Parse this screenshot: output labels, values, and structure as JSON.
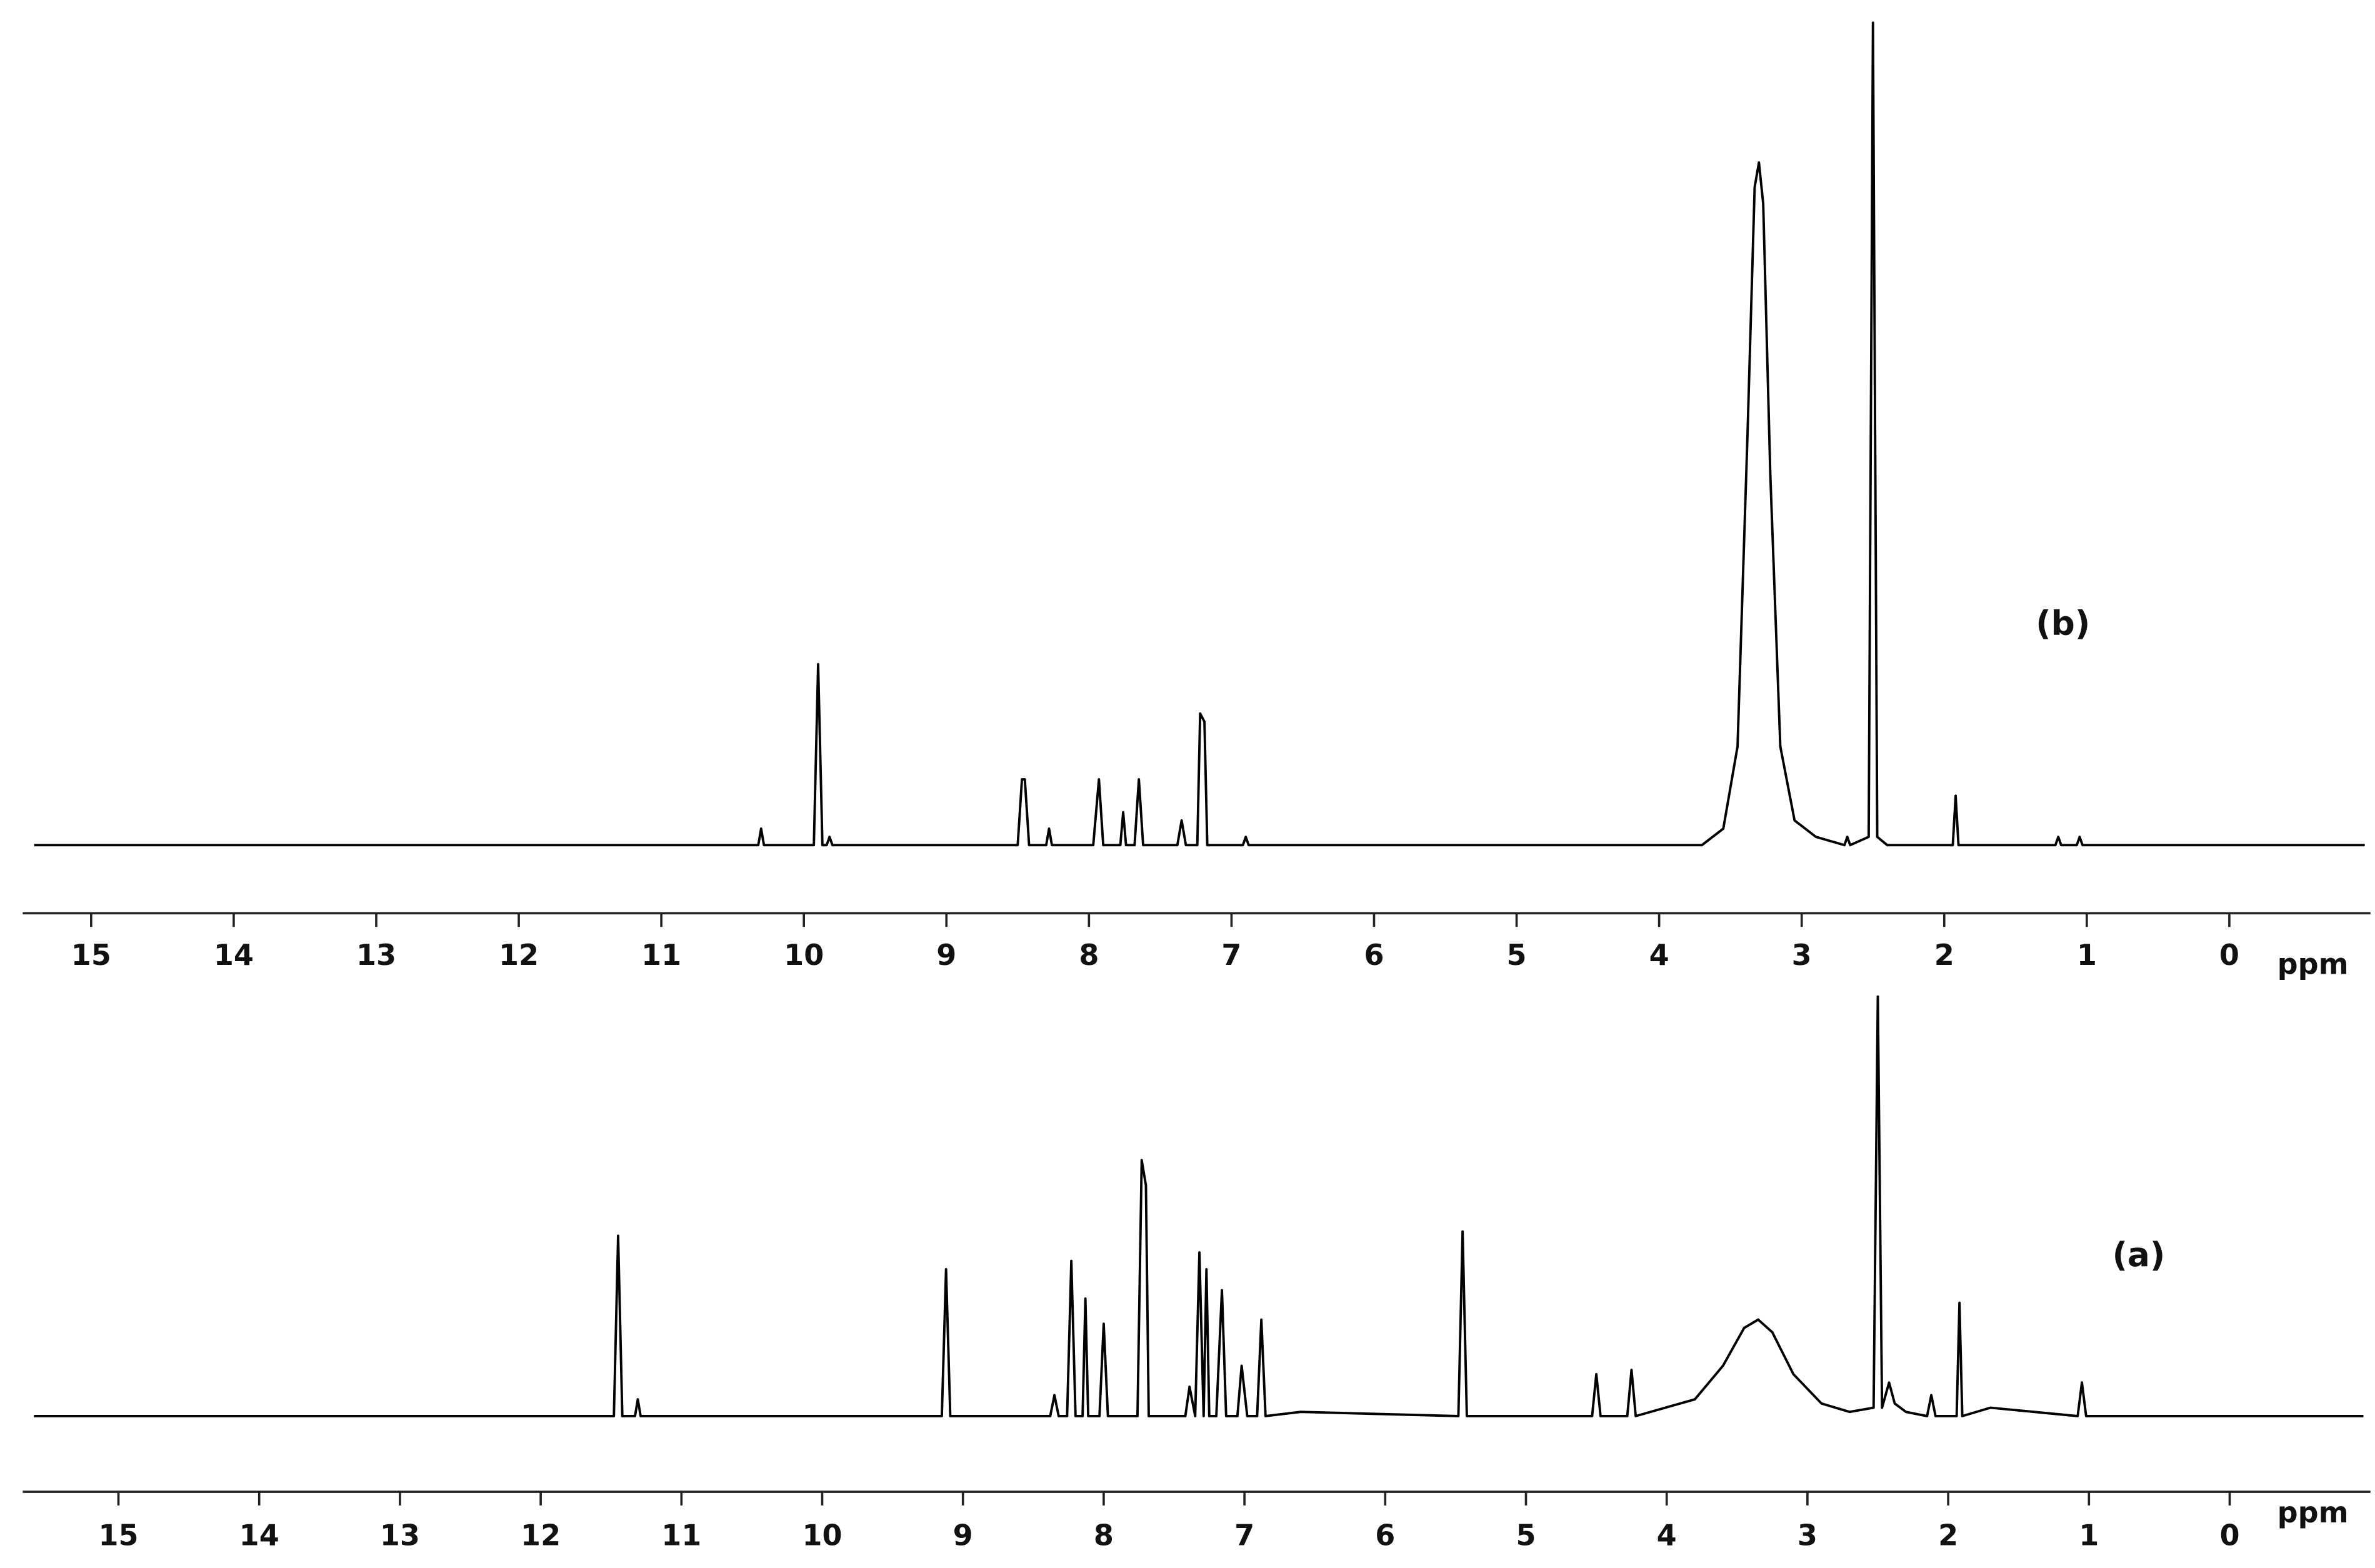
{
  "chart_data": [
    {
      "type": "line",
      "annotation": "(b)",
      "xlabel": "ppm",
      "color": "#000000",
      "xlim": [
        15.48,
        -0.99
      ],
      "ylim": [
        0,
        100
      ],
      "xticks": [
        15,
        14,
        13,
        12,
        11,
        10,
        9,
        8,
        7,
        6,
        5,
        4,
        3,
        2,
        1,
        0
      ],
      "x": [
        15.4,
        10.32,
        10.3,
        10.28,
        9.93,
        9.9,
        9.87,
        9.84,
        9.82,
        9.8,
        8.5,
        8.47,
        8.45,
        8.42,
        8.3,
        8.28,
        8.26,
        7.97,
        7.93,
        7.9,
        7.78,
        7.76,
        7.74,
        7.68,
        7.65,
        7.62,
        7.38,
        7.35,
        7.32,
        7.24,
        7.22,
        7.19,
        7.17,
        6.92,
        6.9,
        6.88,
        3.7,
        3.55,
        3.45,
        3.38,
        3.33,
        3.3,
        3.27,
        3.22,
        3.15,
        3.05,
        2.9,
        2.7,
        2.68,
        2.66,
        2.53,
        2.5,
        2.47,
        2.4,
        1.94,
        1.92,
        1.9,
        1.22,
        1.2,
        1.18,
        1.07,
        1.05,
        1.03,
        -0.95
      ],
      "values": [
        0,
        0,
        2,
        0,
        0,
        22,
        0,
        0,
        1,
        0,
        0,
        8,
        8,
        0,
        0,
        2,
        0,
        0,
        8,
        0,
        0,
        4,
        0,
        0,
        8,
        0,
        0,
        3,
        0,
        0,
        16,
        15,
        0,
        0,
        1,
        0,
        0,
        2,
        12,
        50,
        80,
        83,
        78,
        45,
        12,
        3,
        1,
        0,
        1,
        0,
        1,
        100,
        1,
        0,
        0,
        6,
        0,
        0,
        1,
        0,
        0,
        1,
        0,
        0
      ]
    },
    {
      "type": "line",
      "annotation": "(a)",
      "xlabel": "ppm",
      "color": "#000000",
      "xlim": [
        15.68,
        -1.0
      ],
      "ylim": [
        0,
        100
      ],
      "xticks": [
        15,
        14,
        13,
        12,
        11,
        10,
        9,
        8,
        7,
        6,
        5,
        4,
        3,
        2,
        1,
        0
      ],
      "x": [
        15.6,
        11.48,
        11.45,
        11.42,
        11.33,
        11.31,
        11.29,
        9.15,
        9.12,
        9.09,
        8.38,
        8.35,
        8.32,
        8.26,
        8.23,
        8.2,
        8.15,
        8.13,
        8.11,
        8.03,
        8.0,
        7.97,
        7.76,
        7.73,
        7.7,
        7.68,
        7.42,
        7.39,
        7.35,
        7.32,
        7.29,
        7.27,
        7.25,
        7.2,
        7.16,
        7.13,
        7.05,
        7.02,
        6.98,
        6.91,
        6.88,
        6.85,
        6.6,
        5.48,
        5.45,
        5.42,
        4.53,
        4.5,
        4.47,
        4.28,
        4.25,
        4.22,
        3.8,
        3.6,
        3.45,
        3.35,
        3.25,
        3.1,
        2.9,
        2.7,
        2.53,
        2.5,
        2.47,
        2.42,
        2.38,
        2.3,
        2.15,
        2.12,
        2.09,
        1.94,
        1.92,
        1.9,
        1.7,
        1.08,
        1.05,
        1.02,
        -0.95
      ],
      "values": [
        0,
        0,
        43,
        0,
        0,
        4,
        0,
        0,
        35,
        0,
        0,
        5,
        0,
        0,
        37,
        0,
        0,
        28,
        0,
        0,
        22,
        0,
        0,
        61,
        55,
        0,
        0,
        7,
        0,
        39,
        0,
        35,
        0,
        0,
        30,
        0,
        0,
        12,
        0,
        0,
        23,
        0,
        1,
        0,
        44,
        0,
        0,
        10,
        0,
        0,
        11,
        0,
        4,
        12,
        21,
        23,
        20,
        10,
        3,
        1,
        2,
        100,
        2,
        8,
        3,
        1,
        0,
        5,
        0,
        0,
        27,
        0,
        2,
        0,
        8,
        0,
        0
      ]
    }
  ]
}
